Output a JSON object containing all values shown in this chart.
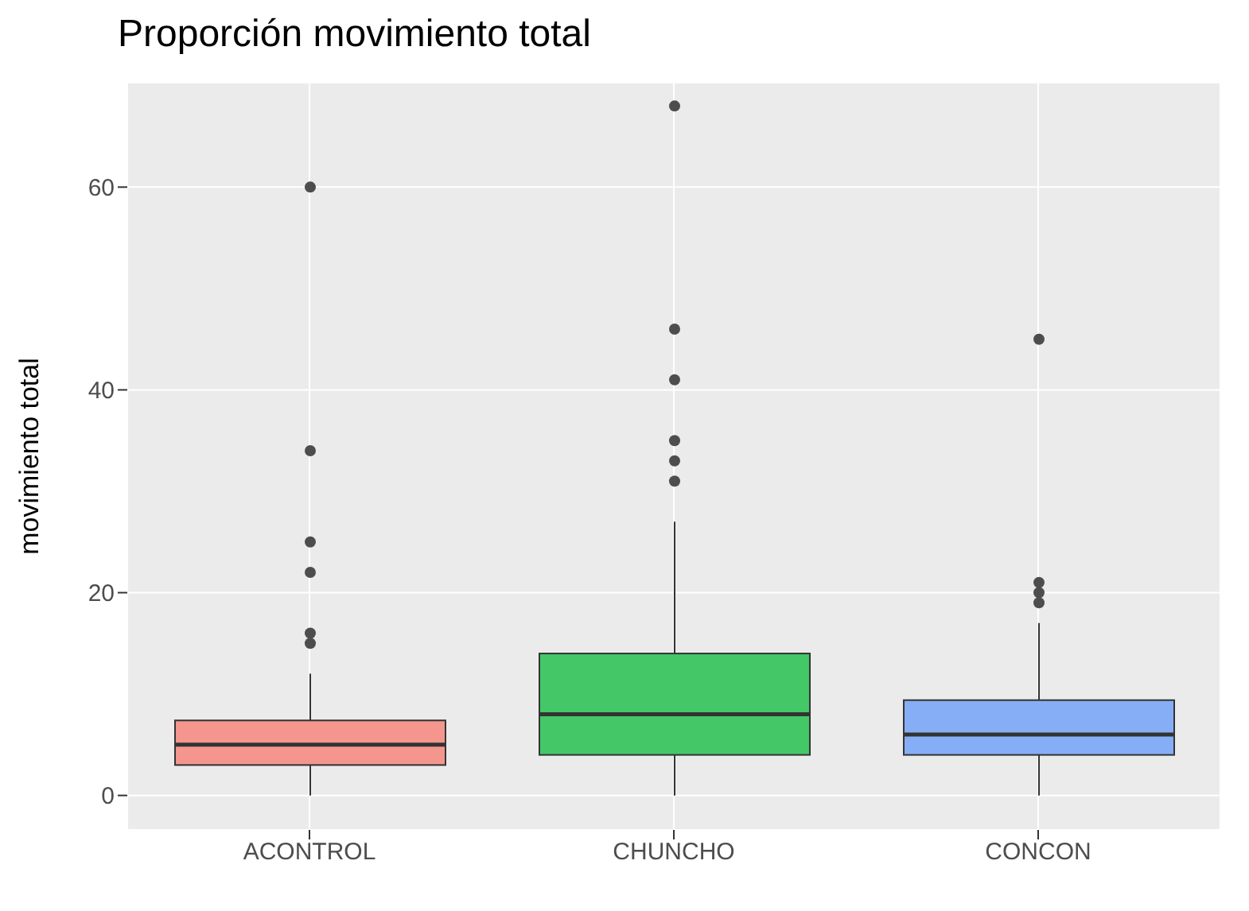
{
  "chart_data": {
    "type": "box",
    "title": "Proporción movimiento total",
    "ylabel": "movimiento total",
    "categories": [
      "ACONTROL",
      "CHUNCHO",
      "CONCON"
    ],
    "colors": [
      "#f4958e",
      "#44c767",
      "#86aef6"
    ],
    "boxes": [
      {
        "low": 0,
        "q1": 3,
        "median": 5,
        "q3": 7.4,
        "high": 12,
        "outliers": [
          60,
          34,
          25,
          22,
          16,
          15
        ]
      },
      {
        "low": 0,
        "q1": 4,
        "median": 8,
        "q3": 14,
        "high": 27,
        "outliers": [
          68,
          46,
          41,
          35,
          33,
          31
        ]
      },
      {
        "low": 0,
        "q1": 4,
        "median": 6,
        "q3": 9.4,
        "high": 17,
        "outliers": [
          45,
          21,
          20,
          19
        ]
      }
    ],
    "ylim": [
      -3.4,
      70.3
    ],
    "yticks": [
      0,
      20,
      40,
      60
    ],
    "grid": true
  }
}
